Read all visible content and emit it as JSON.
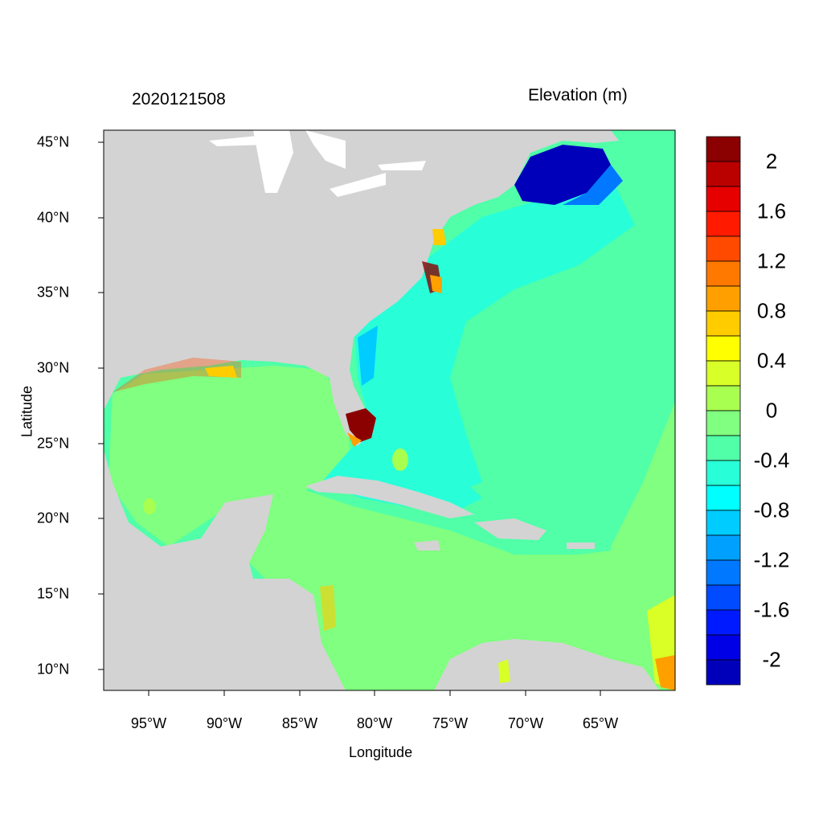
{
  "header": {
    "timestamp": "2020121508",
    "variable_title": "Elevation (m)"
  },
  "axes": {
    "xlabel": "Longitude",
    "ylabel": "Latitude",
    "x_ticks": [
      "95°W",
      "90°W",
      "85°W",
      "80°W",
      "75°W",
      "70°W",
      "65°W"
    ],
    "x_tick_values": [
      -95,
      -90,
      -85,
      -80,
      -75,
      -70,
      -65
    ],
    "y_ticks": [
      "45°N",
      "40°N",
      "35°N",
      "30°N",
      "25°N",
      "20°N",
      "15°N",
      "10°N"
    ],
    "y_tick_values": [
      45,
      40,
      35,
      30,
      25,
      20,
      15,
      10
    ],
    "lon_range": [
      -98,
      -60
    ],
    "lat_range": [
      8.5,
      45.8
    ]
  },
  "colorbar": {
    "labels": [
      "2",
      "1.6",
      "1.2",
      "0.8",
      "0.4",
      "0",
      "-0.4",
      "-0.8",
      "-1.2",
      "-1.6",
      "-2"
    ],
    "colors": [
      "#8b0000",
      "#bb0000",
      "#e60000",
      "#ff1a00",
      "#ff4a00",
      "#ff7800",
      "#ffa000",
      "#ffcc00",
      "#ffff00",
      "#d8ff28",
      "#a8ff50",
      "#80ff80",
      "#50ffa8",
      "#28ffd8",
      "#00ffff",
      "#00ccff",
      "#00a0ff",
      "#0078ff",
      "#004aff",
      "#001aff",
      "#0000e6",
      "#0000bb"
    ]
  },
  "map_colors": {
    "land": "#d3d3d3",
    "gulf_caribbean": "#80ff80",
    "atlantic": "#50ffa8",
    "shelf": "#28ffd8",
    "deep_negative": "#0000bb"
  }
}
